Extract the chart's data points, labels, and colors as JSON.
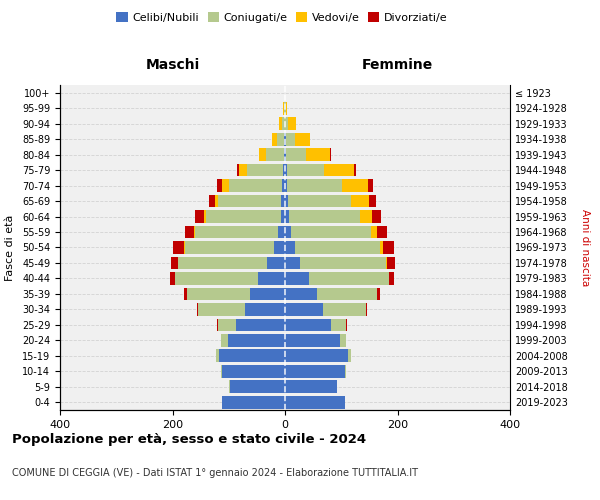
{
  "age_groups": [
    "0-4",
    "5-9",
    "10-14",
    "15-19",
    "20-24",
    "25-29",
    "30-34",
    "35-39",
    "40-44",
    "45-49",
    "50-54",
    "55-59",
    "60-64",
    "65-69",
    "70-74",
    "75-79",
    "80-84",
    "85-89",
    "90-94",
    "95-99",
    "100+"
  ],
  "birth_years": [
    "2019-2023",
    "2014-2018",
    "2009-2013",
    "2004-2008",
    "1999-2003",
    "1994-1998",
    "1989-1993",
    "1984-1988",
    "1979-1983",
    "1974-1978",
    "1969-1973",
    "1964-1968",
    "1959-1963",
    "1954-1958",
    "1949-1953",
    "1944-1948",
    "1939-1943",
    "1934-1938",
    "1929-1933",
    "1924-1928",
    "≤ 1923"
  ],
  "males_celibi": [
    112,
    98,
    112,
    118,
    102,
    88,
    72,
    62,
    48,
    32,
    20,
    12,
    8,
    7,
    5,
    3,
    2,
    1,
    0,
    0,
    0
  ],
  "males_coniugati": [
    0,
    1,
    2,
    5,
    12,
    32,
    82,
    112,
    148,
    158,
    158,
    148,
    132,
    112,
    95,
    65,
    32,
    14,
    6,
    2,
    0
  ],
  "males_vedovi": [
    0,
    0,
    0,
    0,
    0,
    0,
    0,
    0,
    0,
    0,
    1,
    2,
    4,
    6,
    12,
    14,
    12,
    8,
    4,
    1,
    0
  ],
  "males_divorziati": [
    0,
    0,
    0,
    0,
    0,
    1,
    2,
    5,
    9,
    13,
    20,
    16,
    16,
    11,
    9,
    4,
    1,
    0,
    0,
    0,
    0
  ],
  "females_nubili": [
    107,
    92,
    107,
    112,
    97,
    82,
    67,
    57,
    42,
    27,
    17,
    10,
    7,
    6,
    4,
    3,
    2,
    1,
    0,
    0,
    0
  ],
  "females_coniugate": [
    0,
    1,
    2,
    5,
    12,
    27,
    77,
    107,
    142,
    152,
    152,
    142,
    127,
    112,
    97,
    67,
    36,
    16,
    6,
    1,
    0
  ],
  "females_vedove": [
    0,
    0,
    0,
    0,
    0,
    0,
    0,
    0,
    1,
    3,
    6,
    11,
    20,
    32,
    47,
    52,
    42,
    27,
    14,
    3,
    0
  ],
  "females_divorziate": [
    0,
    0,
    0,
    0,
    0,
    1,
    2,
    4,
    9,
    13,
    19,
    19,
    16,
    11,
    9,
    4,
    1,
    0,
    0,
    0,
    0
  ],
  "colors": {
    "celibi": "#4472c4",
    "coniugati": "#b5c98e",
    "vedovi": "#ffc000",
    "divorziati": "#c00000"
  },
  "title": "Popolazione per età, sesso e stato civile - 2024",
  "subtitle": "COMUNE DI CEGGIA (VE) - Dati ISTAT 1° gennaio 2024 - Elaborazione TUTTITALIA.IT",
  "xlabel_left": "Maschi",
  "xlabel_right": "Femmine",
  "ylabel_left": "Fasce di età",
  "ylabel_right": "Anni di nascita",
  "xlim": 400,
  "bg_color": "#ffffff",
  "plot_bg": "#f0f0f0"
}
